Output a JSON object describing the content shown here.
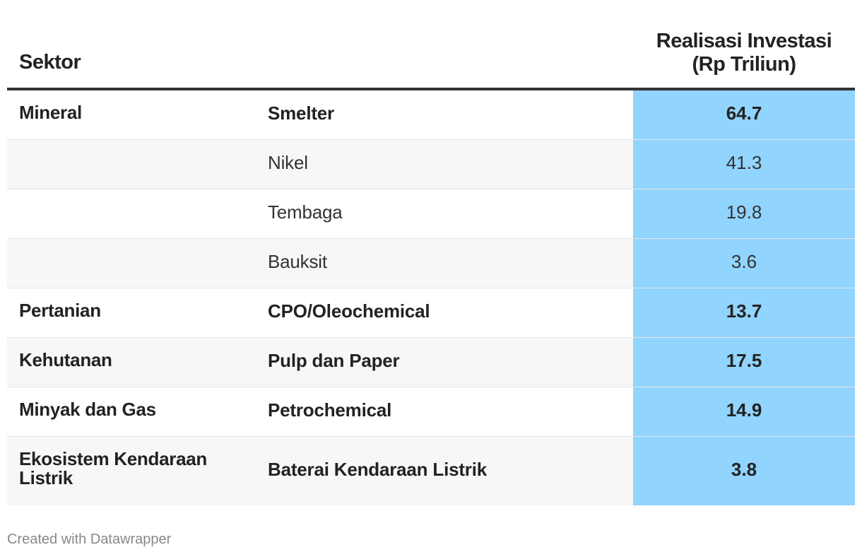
{
  "table": {
    "header": {
      "sektor": "Sektor",
      "value_line1": "Realisasi Investasi",
      "value_line2": "(Rp Triliun)"
    },
    "rows": [
      {
        "sektor": "Mineral",
        "sub": "Smelter",
        "value": "64.7",
        "bold": true
      },
      {
        "sektor": "",
        "sub": "Nikel",
        "value": "41.3",
        "bold": false
      },
      {
        "sektor": "",
        "sub": "Tembaga",
        "value": "19.8",
        "bold": false
      },
      {
        "sektor": "",
        "sub": "Bauksit",
        "value": "3.6",
        "bold": false
      },
      {
        "sektor": "Pertanian",
        "sub": "CPO/Oleochemical",
        "value": "13.7",
        "bold": true
      },
      {
        "sektor": "Kehutanan",
        "sub": "Pulp dan Paper",
        "value": "17.5",
        "bold": true
      },
      {
        "sektor": "Minyak dan Gas",
        "sub": "Petrochemical",
        "value": "14.9",
        "bold": true
      },
      {
        "sektor": "Ekosistem Kendaraan Listrik",
        "sub": "Baterai Kendaraan Listrik",
        "value": "3.8",
        "bold": true
      }
    ]
  },
  "colors": {
    "highlight_column": "#91d4fd",
    "alt_row": "#f7f7f7",
    "header_rule": "#333333"
  },
  "footer": {
    "credit": "Created with Datawrapper"
  }
}
